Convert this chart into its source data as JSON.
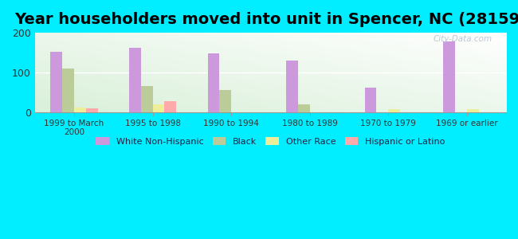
{
  "title": "Year householders moved into unit in Spencer, NC (28159)",
  "categories": [
    "1999 to March\n2000",
    "1995 to 1998",
    "1990 to 1994",
    "1980 to 1989",
    "1970 to 1979",
    "1969 or earlier"
  ],
  "series": {
    "White Non-Hispanic": [
      152,
      163,
      148,
      130,
      62,
      178
    ],
    "Black": [
      110,
      65,
      55,
      20,
      0,
      0
    ],
    "Other Race": [
      12,
      20,
      0,
      0,
      7,
      8
    ],
    "Hispanic or Latino": [
      10,
      28,
      0,
      0,
      0,
      0
    ]
  },
  "colors": {
    "White Non-Hispanic": "#cc99dd",
    "Black": "#bbcc99",
    "Other Race": "#eeee99",
    "Hispanic or Latino": "#ffaaaa"
  },
  "ylim": [
    0,
    200
  ],
  "yticks": [
    0,
    100,
    200
  ],
  "fig_bg": "#00eeff",
  "title_fontsize": 14,
  "watermark": "City-Data.com"
}
